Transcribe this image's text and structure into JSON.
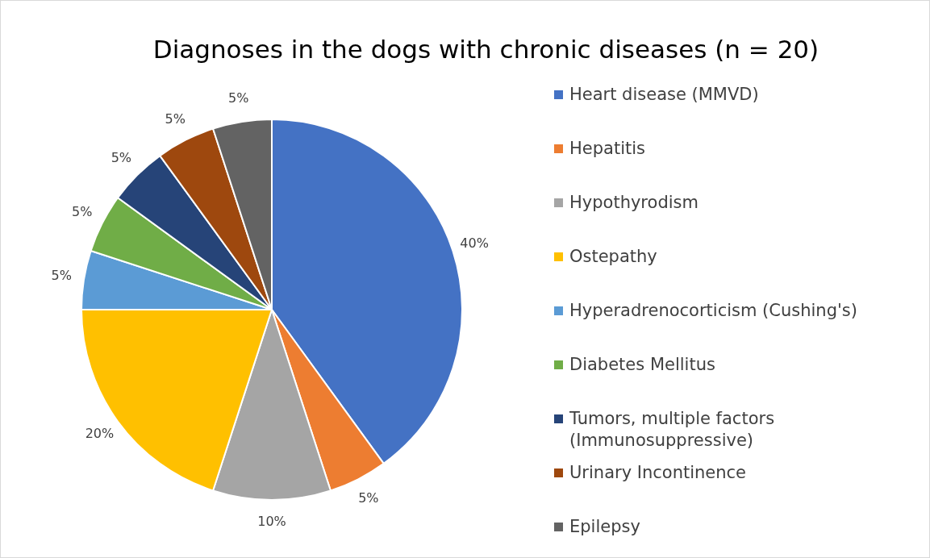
{
  "chart_data": {
    "type": "pie",
    "title": "Diagnoses in the dogs with chronic diseases (n = 20)",
    "categories": [
      "Heart disease (MMVD)",
      "Hepatitis",
      "Hypothyrodism",
      "Ostepathy",
      "Hyperadrenocorticism (Cushing's)",
      "Diabetes Mellitus",
      "Tumors, multiple factors (Immunosuppressive)",
      "Urinary Incontinence",
      "Epilepsy"
    ],
    "values": [
      40,
      5,
      10,
      20,
      5,
      5,
      5,
      5,
      5
    ],
    "value_labels": [
      "40%",
      "5%",
      "10%",
      "20%",
      "5%",
      "5%",
      "5%",
      "5%",
      "5%"
    ],
    "colors": [
      "#4472c4",
      "#ed7d31",
      "#a5a5a5",
      "#ffc000",
      "#5b9bd5",
      "#70ad47",
      "#264478",
      "#9e480e",
      "#636363"
    ],
    "legend": "right"
  }
}
